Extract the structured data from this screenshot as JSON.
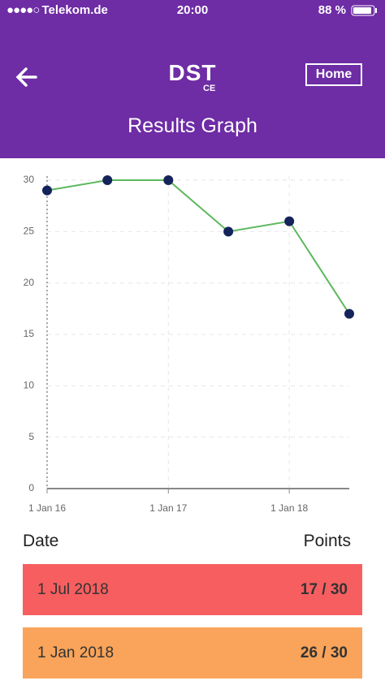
{
  "status_bar": {
    "carrier": "Telekom.de",
    "time": "20:00",
    "battery": "88 %"
  },
  "header": {
    "logo": "DST",
    "mark": "CE",
    "home_button": "Home",
    "title": "Results Graph"
  },
  "chart_data": {
    "type": "line",
    "x": [
      "2016-01-01",
      "2016-07-01",
      "2017-01-01",
      "2017-07-01",
      "2018-01-01",
      "2018-07-01"
    ],
    "series": [
      {
        "color": "#5cb85c",
        "values": [
          29,
          30,
          30,
          25,
          26,
          17
        ]
      }
    ],
    "marker_color": "#14235a",
    "xlim": [
      "2016-01-01",
      "2018-07-01"
    ],
    "xticks": [
      {
        "value": "2016-01-01",
        "label": "1 Jan 16"
      },
      {
        "value": "2017-01-01",
        "label": "1 Jan 17"
      },
      {
        "value": "2018-01-01",
        "label": "1 Jan 18"
      }
    ],
    "ylim": [
      0,
      30
    ],
    "yticks": [
      0,
      5,
      10,
      15,
      20,
      25,
      30
    ],
    "grid": true
  },
  "table": {
    "headers": [
      "Date",
      "Points"
    ],
    "rows": [
      [
        "1 Jul 2018",
        "17 / 30"
      ],
      [
        "1 Jan 2018",
        "26 / 30"
      ]
    ]
  }
}
